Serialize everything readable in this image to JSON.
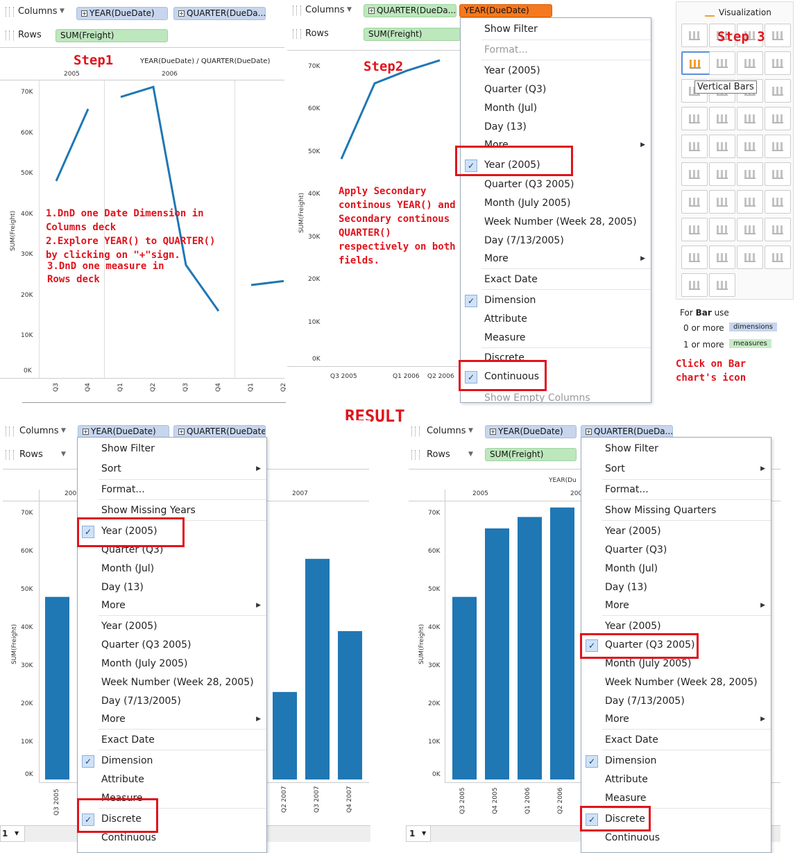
{
  "step1": {
    "columns_label": "Columns",
    "rows_label": "Rows",
    "pill_year": "YEAR(DueDate)",
    "pill_quarter": "QUARTER(DueDa...",
    "pill_freight": "SUM(Freight)",
    "step_title": "Step1",
    "header_title": "YEAR(DueDate) / QUARTER(DueDate)",
    "years": [
      "2005",
      "2006"
    ],
    "y_ticks": [
      "70K",
      "60K",
      "50K",
      "40K",
      "30K",
      "20K",
      "10K",
      "0K"
    ],
    "y_label": "SUM(Freight)",
    "x_ticks": [
      "Q3",
      "Q4",
      "Q1",
      "Q2",
      "Q3",
      "Q4",
      "Q1",
      "Q2"
    ],
    "instructions": [
      "1.DnD one Date Dimension in",
      "Columns deck",
      "2.Explore YEAR() to QUARTER()",
      "by clicking on \"+\"sign.",
      "3.DnD one measure in",
      "Rows deck"
    ]
  },
  "step2": {
    "columns_label": "Columns",
    "rows_label": "Rows",
    "pill_quarter": "QUARTER(DueDa...",
    "pill_year": "YEAR(DueDate)",
    "pill_freight": "SUM(Freight)",
    "step_title": "Step2",
    "y_ticks": [
      "70K",
      "60K",
      "50K",
      "40K",
      "30K",
      "20K",
      "10K",
      "0K"
    ],
    "y_label": "SUM(Freight)",
    "x_ticks": [
      "Q3 2005",
      "Q1 2006",
      "Q2 2006"
    ],
    "instructions": [
      "Apply Secondary",
      "continous YEAR() and",
      "Secondary continous",
      "QUARTER()",
      "respectively on both",
      "fields."
    ],
    "menu": {
      "show_filter": "Show Filter",
      "format": "Format...",
      "year": "Year (2005)",
      "quarter": "Quarter (Q3)",
      "month": "Month (Jul)",
      "day": "Day (13)",
      "more1": "More",
      "year_c": "Year (2005)",
      "quarter_c": "Quarter (Q3 2005)",
      "month_c": "Month (July 2005)",
      "week_c": "Week Number (Week 28, 2005)",
      "day_c": "Day (7/13/2005)",
      "more2": "More",
      "exact": "Exact Date",
      "dimension": "Dimension",
      "attribute": "Attribute",
      "measure": "Measure",
      "discrete": "Discrete",
      "continuous": "Continuous",
      "show_empty": "Show Empty Columns"
    }
  },
  "step3": {
    "title": "Visualization",
    "step_title": "Step 3",
    "tooltip": "Vertical Bars",
    "for_prefix": "For ",
    "for_bold": "Bar",
    "for_suffix": " use",
    "dim_count": "0 or more",
    "dim_badge": "dimensions",
    "meas_count": "1 or more",
    "meas_badge": "measures",
    "hint": [
      "Click on Bar",
      "chart's icon"
    ]
  },
  "result_title": "RESULT",
  "result_left": {
    "columns_label": "Columns",
    "rows_label": "Rows",
    "pill_year": "YEAR(DueDate)",
    "pill_quarter": "QUARTER(DueDate)",
    "years": [
      "200",
      "2007"
    ],
    "y_ticks": [
      "70K",
      "60K",
      "50K",
      "40K",
      "30K",
      "20K",
      "10K",
      "0K"
    ],
    "y_label": "SUM(Freight)",
    "x_ticks": [
      "Q3 2005",
      "Q2 2007",
      "Q3 2007",
      "Q4 2007"
    ],
    "page": "1",
    "menu": {
      "show_filter": "Show Filter",
      "sort": "Sort",
      "format": "Format...",
      "show_missing": "Show Missing Years",
      "year": "Year (2005)",
      "quarter": "Quarter (Q3)",
      "month": "Month (Jul)",
      "day": "Day (13)",
      "more1": "More",
      "year_c": "Year (2005)",
      "quarter_c": "Quarter (Q3 2005)",
      "month_c": "Month (July 2005)",
      "week_c": "Week Number (Week 28, 2005)",
      "day_c": "Day (7/13/2005)",
      "more2": "More",
      "exact": "Exact Date",
      "dimension": "Dimension",
      "attribute": "Attribute",
      "measure": "Measure",
      "discrete": "Discrete",
      "continuous": "Continuous"
    }
  },
  "result_right": {
    "columns_label": "Columns",
    "rows_label": "Rows",
    "pill_year": "YEAR(DueDate)",
    "pill_quarter": "QUARTER(DueDa...",
    "pill_freight": "SUM(Freight)",
    "header_title": "YEAR(Du",
    "years": [
      "2005",
      "200"
    ],
    "y_ticks": [
      "70K",
      "60K",
      "50K",
      "40K",
      "30K",
      "20K",
      "10K",
      "0K"
    ],
    "y_label": "SUM(Freight)",
    "x_ticks": [
      "Q3 2005",
      "Q4 2005",
      "Q1 2006",
      "Q2 2006"
    ],
    "page": "1",
    "menu": {
      "show_filter": "Show Filter",
      "sort": "Sort",
      "format": "Format...",
      "show_missing": "Show Missing Quarters",
      "year": "Year (2005)",
      "quarter": "Quarter (Q3)",
      "month": "Month (Jul)",
      "day": "Day (13)",
      "more1": "More",
      "year_c": "Year (2005)",
      "quarter_c": "Quarter (Q3 2005)",
      "month_c": "Month (July 2005)",
      "week_c": "Week Number (Week 28, 2005)",
      "day_c": "Day (7/13/2005)",
      "more2": "More",
      "exact": "Exact Date",
      "dimension": "Dimension",
      "attribute": "Attribute",
      "measure": "Measure",
      "discrete": "Discrete",
      "continuous": "Continuous"
    }
  },
  "chart_data": [
    {
      "type": "line",
      "title": "YEAR(DueDate) / QUARTER(DueDate)",
      "ylabel": "SUM(Freight)",
      "ylim": [
        0,
        75000
      ],
      "categories": [
        "2005 Q3",
        "2005 Q4",
        "2006 Q1",
        "2006 Q2",
        "2006 Q3",
        "2006 Q4",
        "2007 Q1",
        "2007 Q2"
      ],
      "values": [
        48000,
        66000,
        69000,
        71500,
        27000,
        15500,
        22000,
        23000
      ]
    },
    {
      "type": "line",
      "ylabel": "SUM(Freight)",
      "ylim": [
        0,
        75000
      ],
      "categories": [
        "Q3 2005",
        "Q4 2005",
        "Q1 2006",
        "Q2 2006"
      ],
      "values": [
        48000,
        66000,
        69000,
        71500
      ]
    },
    {
      "type": "bar",
      "ylabel": "SUM(Freight)",
      "ylim": [
        0,
        75000
      ],
      "categories": [
        "Q3 2005",
        "Q2 2007",
        "Q3 2007",
        "Q4 2007"
      ],
      "values": [
        48000,
        23000,
        58000,
        39000
      ]
    },
    {
      "type": "bar",
      "ylabel": "SUM(Freight)",
      "ylim": [
        0,
        75000
      ],
      "categories": [
        "Q3 2005",
        "Q4 2005",
        "Q1 2006",
        "Q2 2006"
      ],
      "values": [
        48000,
        66000,
        69000,
        71500
      ]
    }
  ]
}
